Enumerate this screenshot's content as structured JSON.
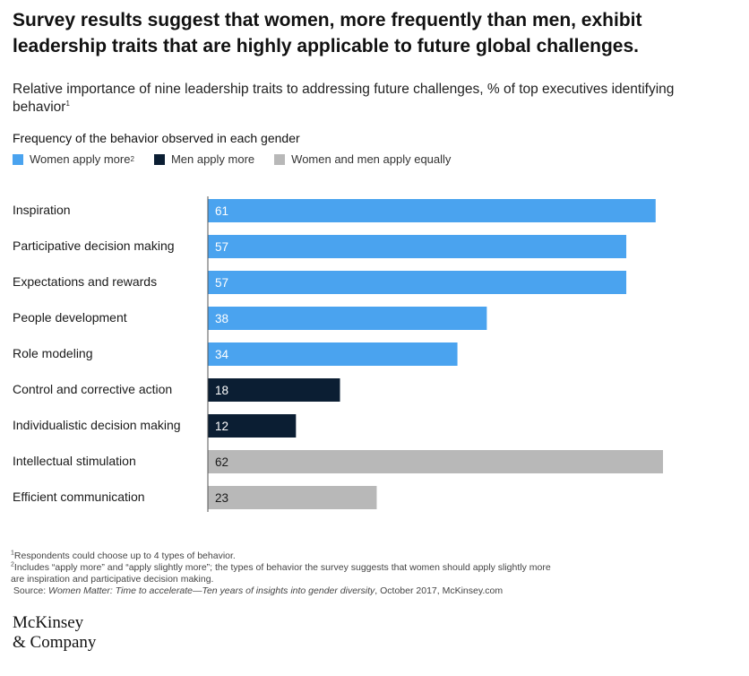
{
  "title": "Survey results suggest that women, more frequently than men, exhibit leadership traits that are highly applicable to future global challenges.",
  "subtitle": "Relative importance of nine leadership traits to addressing future challenges, % of top executives identifying behavior",
  "subtitle_note": "1",
  "legend_title": "Frequency of the behavior observed in each gender",
  "legend": [
    {
      "label": "Women apply more",
      "note": "2",
      "color": "#4aa3ef"
    },
    {
      "label": "Men apply more",
      "note": "",
      "color": "#0b1e33"
    },
    {
      "label": "Women and men apply equally",
      "note": "",
      "color": "#b8b8b8"
    }
  ],
  "chart_data": {
    "type": "bar",
    "orientation": "horizontal",
    "categories": [
      "Inspiration",
      "Participative decision making",
      "Expectations and rewards",
      "People development",
      "Role modeling",
      "Control and corrective action",
      "Individualistic decision making",
      "Intellectual stimulation",
      "Efficient communication"
    ],
    "values": [
      61,
      57,
      57,
      38,
      34,
      18,
      12,
      62,
      23
    ],
    "groups": [
      0,
      0,
      0,
      0,
      0,
      1,
      1,
      2,
      2
    ],
    "xlim": [
      0,
      62
    ],
    "grid": false
  },
  "footnotes": {
    "note1_mark": "1",
    "note1": "Respondents could choose up to 4 types of behavior.",
    "note2_mark": "2",
    "note2": "Includes “apply more” and “apply slightly more”; the types of behavior the survey suggests that women should apply slightly more\n are inspiration and participative decision making.",
    "source_label": "Source: ",
    "source_title": "Women Matter: Time to accelerate—Ten years of insights into gender diversity",
    "source_rest": ", October 2017, McKinsey.com"
  },
  "logo": {
    "line1": "McKinsey",
    "line2": "& Company"
  }
}
